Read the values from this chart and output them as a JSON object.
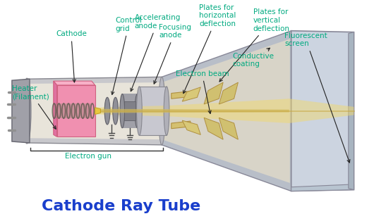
{
  "title": "Cathode Ray Tube",
  "title_color": "#1a3fcc",
  "title_fontsize": 16,
  "label_color": "#00aa80",
  "label_fontsize": 7.5,
  "bg_color": "#ffffff",
  "labels": {
    "cathode": "Cathode",
    "control_grid": "Control\ngrid",
    "accelerating_anode": "Accelerating\nanode",
    "focusing_anode": "Focusing\nanode",
    "plates_horizontal": "Plates for\nhorizontal\ndeflection",
    "plates_vertical": "Plates for\nvertical\ndeflection",
    "heater": "Heater\n(Filament)",
    "electron_gun": "Electron gun",
    "electron_beam": "Electron beam",
    "conductive_coating": "Conductive\ncoating",
    "fluorescent_screen": "Fluorescent\nscreen"
  },
  "neck_outer_color": "#c8c8cc",
  "neck_inner_color": "#e8e4da",
  "funnel_outer_color": "#b8bec8",
  "funnel_inner_color": "#d8d4c8",
  "screen_face_color": "#ccd4e0",
  "plug_color": "#a0a0a8",
  "cathode_color": "#f090b0",
  "cathode_top_color": "#e86898",
  "grid_color": "#909098",
  "anode_color": "#808088",
  "focus_color": "#c0c0c8",
  "plate_color": "#d4c070",
  "beam_color": "#f0d870",
  "pin_color": "#909090"
}
